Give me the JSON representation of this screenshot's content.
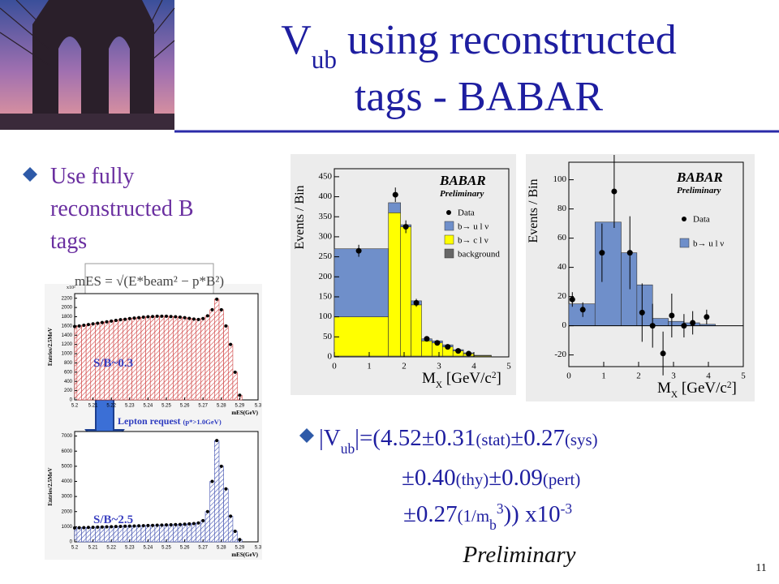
{
  "title": {
    "runs": [
      {
        "text": "V"
      },
      {
        "text": "ub",
        "form": "sub"
      },
      {
        "text": " using reconstructed"
      }
    ],
    "line2": "tags - BABAR"
  },
  "bullet": {
    "lines": [
      "Use fully",
      "reconstructed B",
      "tags"
    ]
  },
  "mes_formula": "mES = √(E*beam² − p*B²)",
  "arrow_label": {
    "runs": [
      {
        "text": "Lepton request "
      },
      {
        "text": "(p*>1.0GeV)",
        "form": "small"
      }
    ]
  },
  "result": {
    "lines": [
      [
        {
          "text": "|V"
        },
        {
          "text": "ub",
          "form": "sub"
        },
        {
          "text": "|=(4.52±0.31"
        },
        {
          "text": "(stat)",
          "form": "small"
        },
        {
          "text": "±0.27"
        },
        {
          "text": "(sys)",
          "form": "small"
        }
      ],
      [
        {
          "text": "±0.40"
        },
        {
          "text": "(thy)",
          "form": "small"
        },
        {
          "text": "±0.09"
        },
        {
          "text": "(pert)",
          "form": "small"
        }
      ],
      [
        {
          "text": "±0.27"
        },
        {
          "text": "(1/m",
          "form": "small"
        },
        {
          "text": "b",
          "form": "sub"
        },
        {
          "text": "3",
          "form": "sup"
        },
        {
          "text": ")) x10"
        },
        {
          "text": "-3",
          "form": "sup"
        }
      ]
    ],
    "note": "Preliminary"
  },
  "page_number": "11",
  "chart_data": [
    {
      "type": "scatter",
      "y_label": "Entries/2.5MeV",
      "x_label": "mES(GeV)",
      "multiplier": "x10²",
      "annotation": "S/B~0.3",
      "color": "#d04040",
      "x": [
        5.2,
        5.2025,
        5.205,
        5.2075,
        5.21,
        5.2125,
        5.215,
        5.2175,
        5.22,
        5.2225,
        5.225,
        5.2275,
        5.23,
        5.2325,
        5.235,
        5.2375,
        5.24,
        5.2425,
        5.245,
        5.2475,
        5.25,
        5.2525,
        5.255,
        5.2575,
        5.26,
        5.2625,
        5.265,
        5.2675,
        5.27,
        5.2725,
        5.275,
        5.2775,
        5.28,
        5.2825,
        5.285,
        5.2875,
        5.29
      ],
      "values": [
        1590,
        1600,
        1615,
        1630,
        1645,
        1660,
        1675,
        1690,
        1705,
        1720,
        1735,
        1745,
        1760,
        1770,
        1780,
        1790,
        1800,
        1805,
        1810,
        1810,
        1810,
        1805,
        1800,
        1790,
        1780,
        1765,
        1750,
        1740,
        1760,
        1820,
        1950,
        2180,
        1950,
        1600,
        1200,
        600,
        100
      ],
      "xlim": [
        5.2,
        5.3
      ],
      "xticks": [
        5.2,
        5.21,
        5.22,
        5.23,
        5.24,
        5.25,
        5.26,
        5.27,
        5.28,
        5.29,
        5.3
      ],
      "ylim": [
        0,
        2300
      ],
      "yticks": [
        0,
        200,
        400,
        600,
        800,
        1000,
        1200,
        1400,
        1600,
        1800,
        2000,
        2200
      ]
    },
    {
      "type": "scatter",
      "y_label": "Entries/2.5MeV",
      "x_label": "mES(GeV)",
      "annotation": "S/B~2.5",
      "color": "#4050b0",
      "x": [
        5.2,
        5.2025,
        5.205,
        5.2075,
        5.21,
        5.2125,
        5.215,
        5.2175,
        5.22,
        5.2225,
        5.225,
        5.2275,
        5.23,
        5.2325,
        5.235,
        5.2375,
        5.24,
        5.2425,
        5.245,
        5.2475,
        5.25,
        5.2525,
        5.255,
        5.2575,
        5.26,
        5.2625,
        5.265,
        5.2675,
        5.27,
        5.2725,
        5.275,
        5.2775,
        5.28,
        5.2825,
        5.285,
        5.2875,
        5.29
      ],
      "values": [
        920,
        930,
        940,
        950,
        960,
        970,
        980,
        990,
        1000,
        1010,
        1020,
        1030,
        1040,
        1050,
        1060,
        1070,
        1080,
        1090,
        1100,
        1110,
        1120,
        1130,
        1140,
        1150,
        1170,
        1190,
        1210,
        1250,
        1400,
        2000,
        4000,
        6700,
        5000,
        3500,
        1700,
        700,
        150
      ],
      "xlim": [
        5.2,
        5.3
      ],
      "xticks": [
        5.2,
        5.21,
        5.22,
        5.23,
        5.24,
        5.25,
        5.26,
        5.27,
        5.28,
        5.29,
        5.3
      ],
      "ylim": [
        0,
        7300
      ],
      "yticks": [
        0,
        1000,
        2000,
        3000,
        4000,
        5000,
        6000,
        7000
      ]
    },
    {
      "type": "histogram",
      "y_label": "Events / Bin",
      "x_label": [
        {
          "text": "M"
        },
        {
          "text": "X",
          "form": "sub"
        },
        {
          "text": " [GeV/c"
        },
        {
          "text": "2",
          "form": "sup"
        },
        {
          "text": "]"
        }
      ],
      "logo": "BABAR",
      "logo_note": "Preliminary",
      "bins": [
        0,
        1.55,
        1.9,
        2.2,
        2.5,
        2.8,
        3.1,
        3.4,
        3.7,
        4.0,
        4.5
      ],
      "series": [
        {
          "name": "b→ u l ν",
          "color": "#6f8fca",
          "values": [
            170,
            25,
            5,
            10,
            5,
            5,
            5,
            3,
            2,
            1
          ]
        },
        {
          "name": "b→ c l ν",
          "color": "#ffff00",
          "values": [
            98,
            358,
            323,
            128,
            38,
            33,
            23,
            13,
            6,
            2
          ]
        },
        {
          "name": "background",
          "color": "#666666",
          "values": [
            2,
            2,
            2,
            2,
            2,
            2,
            2,
            2,
            2,
            1
          ]
        }
      ],
      "points": {
        "name": "Data",
        "x": [
          0.7,
          1.75,
          2.05,
          2.35,
          2.65,
          2.95,
          3.25,
          3.55,
          3.85
        ],
        "values": [
          265,
          405,
          325,
          135,
          45,
          35,
          25,
          15,
          8
        ],
        "errors": [
          15,
          18,
          16,
          10,
          6,
          6,
          5,
          4,
          3
        ]
      },
      "xlim": [
        0,
        5
      ],
      "xticks": [
        0,
        1,
        2,
        3,
        4,
        5
      ],
      "ylim": [
        0,
        470
      ],
      "yticks": [
        0,
        50,
        100,
        150,
        200,
        250,
        300,
        350,
        400,
        450
      ]
    },
    {
      "type": "histogram",
      "y_label": "Events / Bin",
      "x_label": [
        {
          "text": "M"
        },
        {
          "text": "X",
          "form": "sub"
        },
        {
          "text": " [GeV/c"
        },
        {
          "text": "2",
          "form": "sup"
        },
        {
          "text": "]"
        }
      ],
      "logo": "BABAR",
      "logo_note": "Preliminary",
      "bins": [
        0,
        0.75,
        1.5,
        1.95,
        2.4,
        2.85,
        3.3,
        3.75,
        4.2
      ],
      "series": [
        {
          "name": "b→ u l ν",
          "color": "#6f8fca",
          "values": [
            15,
            71,
            50,
            28,
            5,
            3,
            2,
            1
          ]
        }
      ],
      "points": {
        "name": "Data",
        "x": [
          0.1,
          0.4,
          0.95,
          1.3,
          1.75,
          2.1,
          2.4,
          2.7,
          2.95,
          3.3,
          3.55,
          3.95
        ],
        "values": [
          18,
          11,
          50,
          92,
          50,
          9,
          0,
          -19,
          7,
          0,
          2,
          6
        ],
        "errors": [
          5,
          5,
          20,
          25,
          25,
          20,
          15,
          15,
          15,
          8,
          8,
          5
        ]
      },
      "xlim": [
        0,
        5
      ],
      "xticks": [
        0,
        1,
        2,
        3,
        4,
        5
      ],
      "ylim": [
        -28,
        112
      ],
      "yticks": [
        -20,
        0,
        20,
        40,
        60,
        80,
        100
      ]
    }
  ]
}
